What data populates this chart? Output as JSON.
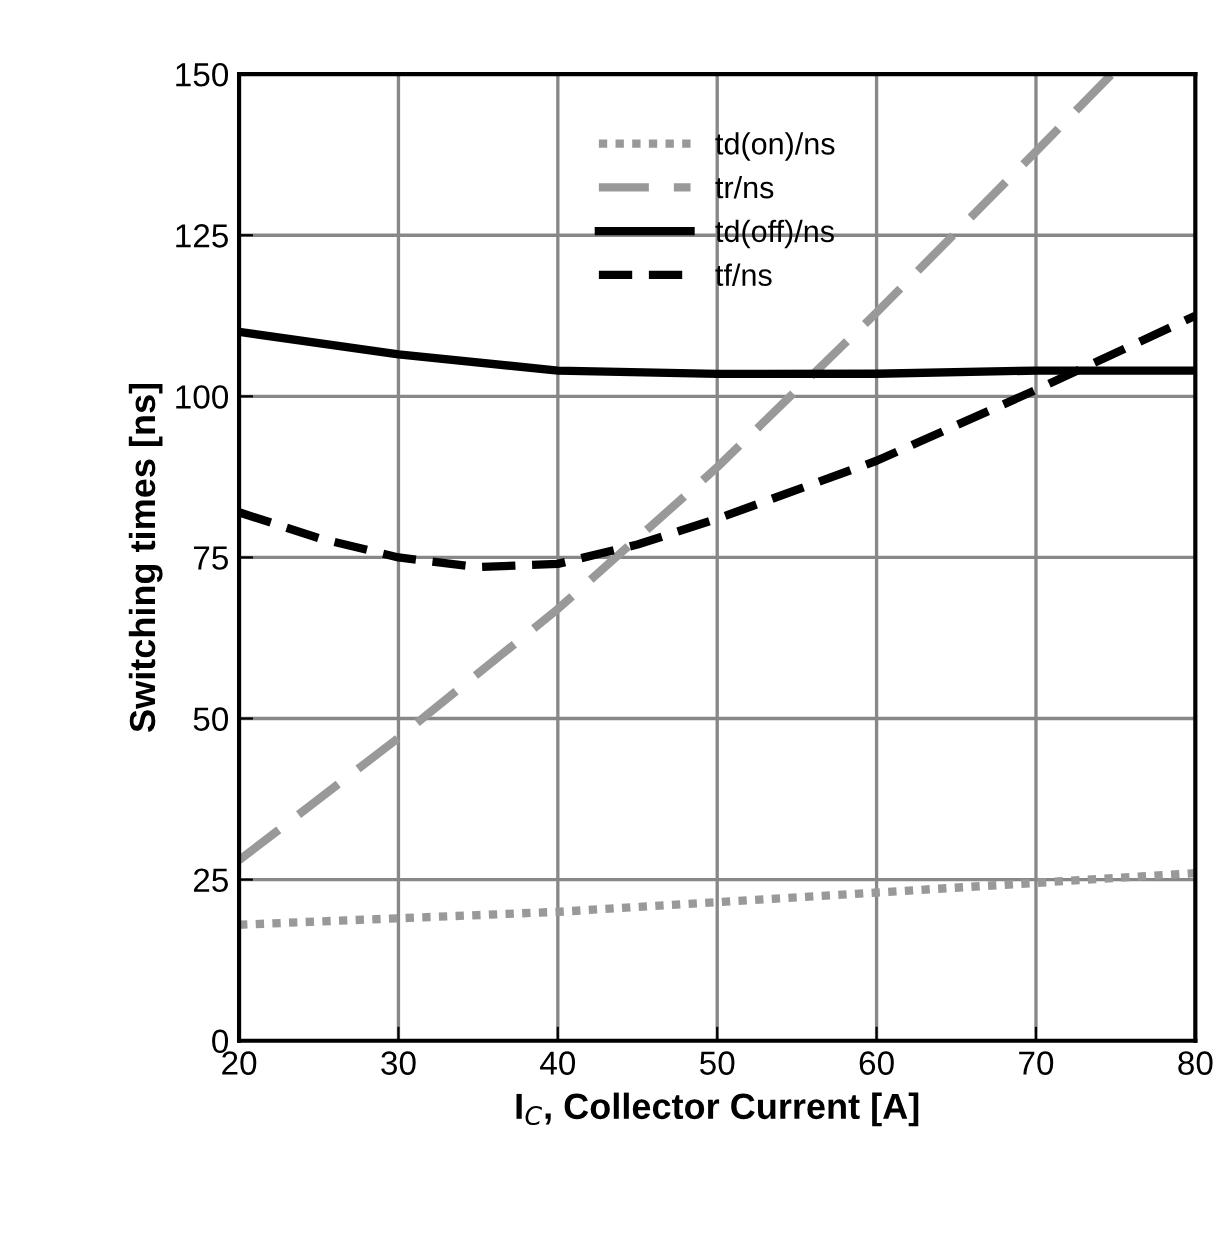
{
  "chart_data": {
    "type": "line",
    "xlabel": "I$_{C}$, Collector Current [A]",
    "ylabel": "Switching times [ns]",
    "xlim": [
      20,
      80
    ],
    "xticks": [
      20,
      30,
      40,
      50,
      60,
      70,
      80
    ],
    "ylim": [
      0,
      150
    ],
    "yticks": [
      0,
      25,
      50,
      75,
      100,
      125,
      150
    ],
    "grid": true,
    "legend": "top",
    "series": [
      {
        "name": "td(on)/ns",
        "color": "#999999",
        "line_style": "dotted",
        "x": [
          20,
          30,
          40,
          50,
          60,
          70,
          80
        ],
        "values": [
          18,
          19,
          20,
          21.5,
          23,
          24.5,
          26
        ]
      },
      {
        "name": "tr/ns",
        "color": "#999999",
        "line_style": "dashed",
        "x": [
          20,
          30,
          40,
          50,
          60,
          70,
          74.75
        ],
        "values": [
          28,
          47,
          67,
          89,
          113,
          138,
          150
        ]
      },
      {
        "name": "td(off)/ns",
        "color": "#000000",
        "line_style": "solid",
        "x": [
          20,
          30,
          40,
          50,
          60,
          70,
          80
        ],
        "values": [
          110,
          106.5,
          104,
          103.5,
          103.5,
          104,
          104
        ]
      },
      {
        "name": "tf/ns",
        "color": "#000000",
        "line_style": "dashed",
        "x": [
          20,
          25,
          30,
          35,
          40,
          45,
          50,
          60,
          70,
          80
        ],
        "values": [
          82,
          78,
          75,
          73.5,
          74,
          77,
          81,
          90,
          101,
          112.5
        ]
      }
    ]
  }
}
